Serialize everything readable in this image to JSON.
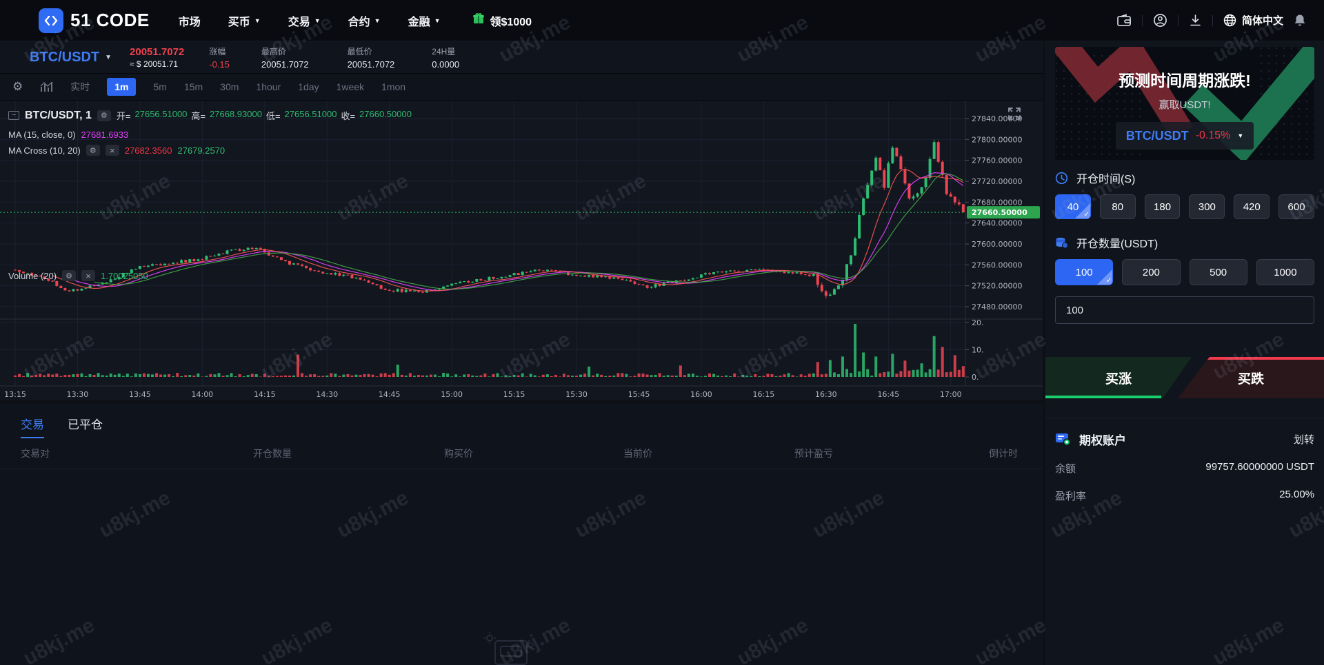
{
  "watermark": {
    "text": "u8kj.me"
  },
  "navbar": {
    "brand": "51 CODE",
    "menu": [
      {
        "label": "市场",
        "caret": false
      },
      {
        "label": "买币",
        "caret": true
      },
      {
        "label": "交易",
        "caret": true
      },
      {
        "label": "合约",
        "caret": true
      },
      {
        "label": "金融",
        "caret": true
      }
    ],
    "bonus_label": "领$1000",
    "language": "简体中文"
  },
  "ticker": {
    "pair": "BTC/USDT",
    "price": "20051.7072",
    "approx_usd": "≈ $ 20051.71",
    "stats": [
      {
        "label": "涨幅",
        "value": "-0.15",
        "color": "#f0424d"
      },
      {
        "label": "最高价",
        "value": "20051.7072",
        "color": "#e9edf2"
      },
      {
        "label": "最低价",
        "value": "20051.7072",
        "color": "#e9edf2"
      },
      {
        "label": "24H量",
        "value": "0.0000",
        "color": "#e9edf2"
      }
    ]
  },
  "toolbar": {
    "realtime_label": "实时",
    "timeframes": [
      "1m",
      "5m",
      "15m",
      "30m",
      "1hour",
      "1day",
      "1week",
      "1mon"
    ],
    "active": "1m"
  },
  "chart_data": {
    "type": "candlestick",
    "symbol_legend": "BTC/USDT, 1",
    "interval_minutes": 1,
    "ohlc_legend": {
      "open_label": "开=",
      "open": "27656.51000",
      "high_label": "高=",
      "high": "27668.93000",
      "low_label": "低=",
      "low": "27656.51000",
      "close_label": "收=",
      "close": "27660.50000"
    },
    "ma_legend": {
      "name": "MA (15, close, 0)",
      "value": "27681.6933",
      "color": "#e040fb"
    },
    "ma_cross_legend": {
      "name": "MA Cross (10, 20)",
      "fast": "27682.3560",
      "fast_color": "#f23645",
      "slow": "27679.2570",
      "slow_color": "#2ebd70"
    },
    "volume_legend": {
      "name": "Volume (20)",
      "value": "1.70025050",
      "color": "#2ebd70"
    },
    "last_price": 27660.5,
    "last_price_label": "27660.50000",
    "y_ticks": [
      27840,
      27800,
      27760,
      27720,
      27680,
      27640,
      27600,
      27560,
      27520,
      27480
    ],
    "y_tick_labels": [
      "27840.00000",
      "27800.00000",
      "27760.00000",
      "27720.00000",
      "27680.00000",
      "27640.00000",
      "27600.00000",
      "27560.00000",
      "27520.00000",
      "27480.00000"
    ],
    "volume_ticks": [
      "20.",
      "10.",
      "0."
    ],
    "x_ticks": [
      "13:15",
      "13:30",
      "13:45",
      "14:00",
      "14:15",
      "14:30",
      "14:45",
      "15:00",
      "15:15",
      "15:30",
      "15:45",
      "16:00",
      "16:15",
      "16:30",
      "16:45",
      "17:00"
    ],
    "price_range": [
      27480,
      27840
    ],
    "volume_range": [
      0,
      20
    ],
    "candles_count": 229,
    "price_path_anchors": [
      [
        0,
        27548
      ],
      [
        6,
        27538
      ],
      [
        13,
        27510
      ],
      [
        20,
        27522
      ],
      [
        30,
        27555
      ],
      [
        45,
        27572
      ],
      [
        52,
        27588
      ],
      [
        58,
        27592
      ],
      [
        64,
        27568
      ],
      [
        72,
        27548
      ],
      [
        80,
        27538
      ],
      [
        90,
        27512
      ],
      [
        98,
        27508
      ],
      [
        108,
        27528
      ],
      [
        118,
        27538
      ],
      [
        126,
        27552
      ],
      [
        134,
        27542
      ],
      [
        144,
        27535
      ],
      [
        152,
        27518
      ],
      [
        160,
        27530
      ],
      [
        168,
        27545
      ],
      [
        178,
        27550
      ],
      [
        186,
        27545
      ],
      [
        192,
        27540
      ],
      [
        195,
        27498
      ],
      [
        198,
        27515
      ],
      [
        201,
        27580
      ],
      [
        204,
        27695
      ],
      [
        207,
        27760
      ],
      [
        209,
        27715
      ],
      [
        211,
        27788
      ],
      [
        213,
        27745
      ],
      [
        215,
        27682
      ],
      [
        217,
        27700
      ],
      [
        219,
        27728
      ],
      [
        221,
        27790
      ],
      [
        223,
        27732
      ],
      [
        224,
        27698
      ],
      [
        226,
        27682
      ],
      [
        228,
        27660.5
      ]
    ],
    "volume_spikes": [
      [
        68,
        8.2
      ],
      [
        92,
        4.5
      ],
      [
        138,
        3.8
      ],
      [
        160,
        4.2
      ],
      [
        193,
        5.5
      ],
      [
        196,
        6.2
      ],
      [
        199,
        7.5
      ],
      [
        202,
        19.5
      ],
      [
        204,
        9
      ],
      [
        207,
        7.5
      ],
      [
        211,
        8.5
      ],
      [
        214,
        6
      ],
      [
        218,
        5
      ],
      [
        221,
        15
      ],
      [
        223,
        11
      ],
      [
        226,
        8
      ],
      [
        228,
        4
      ]
    ],
    "moving_averages": [
      {
        "period": 15,
        "color": "#e040fb"
      },
      {
        "period": 10,
        "color": "#ef5350"
      },
      {
        "period": 20,
        "color": "#43a047"
      }
    ],
    "colors": {
      "up": "#2ebd70",
      "down": "#ec4450",
      "grid": "#1a2130",
      "axis_text": "#b2b5be",
      "last_price_tag": "#2da44e",
      "last_price_line": "#2fbf5f"
    }
  },
  "positions_panel": {
    "tabs": [
      {
        "label": "交易",
        "active": true
      },
      {
        "label": "已平仓",
        "active": false
      }
    ],
    "headers": [
      "交易对",
      "开仓数量",
      "购买价",
      "当前价",
      "预计盈亏",
      "倒计时"
    ],
    "rows": []
  },
  "trade_panel": {
    "banner_title": "预测时间周期涨跌!",
    "banner_subtitle": "赢取USDT!",
    "pair": "BTC/USDT",
    "pair_change": "-0.15%",
    "open_time_label": "开仓时间(S)",
    "time_options": [
      "40",
      "80",
      "180",
      "300",
      "420",
      "600"
    ],
    "active_time": "40",
    "amount_label": "开仓数量(USDT)",
    "amount_options": [
      "100",
      "200",
      "500",
      "1000"
    ],
    "active_amount": "100",
    "amount_value": "100",
    "buy_up": "买涨",
    "buy_down": "买跌"
  },
  "account_panel": {
    "title": "期权账户",
    "transfer": "划转",
    "balance_label": "余额",
    "balance": "99757.60000000 USDT",
    "profit_label": "盈利率",
    "profit": "25.00%"
  }
}
